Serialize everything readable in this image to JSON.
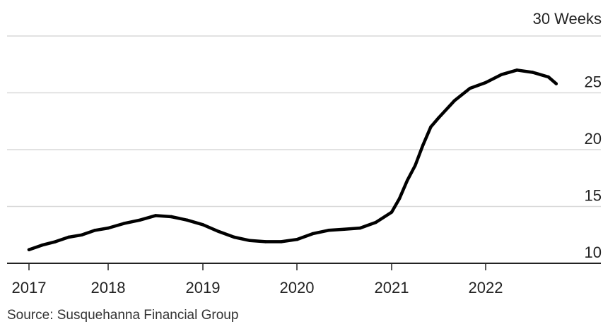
{
  "chart_data": {
    "type": "line",
    "title": "",
    "xlabel": "",
    "ylabel": "",
    "y_unit_label": "30 Weeks",
    "x_tick_labels": [
      "2017",
      "2018",
      "2019",
      "2020",
      "2021",
      "2022"
    ],
    "y_ticks": [
      10,
      15,
      20,
      25
    ],
    "xlim": [
      "2017-01",
      "2022-12"
    ],
    "ylim": [
      10,
      30
    ],
    "grid": "horizontal",
    "legend": "none",
    "series": [
      {
        "color": "#000000",
        "x": [
          "2017-01",
          "2017-03",
          "2017-05",
          "2017-07",
          "2017-09",
          "2017-11",
          "2018-01",
          "2018-03",
          "2018-05",
          "2018-07",
          "2018-09",
          "2018-11",
          "2019-01",
          "2019-03",
          "2019-05",
          "2019-07",
          "2019-09",
          "2019-11",
          "2020-01",
          "2020-03",
          "2020-05",
          "2020-07",
          "2020-09",
          "2020-11",
          "2021-01",
          "2021-02",
          "2021-03",
          "2021-04",
          "2021-05",
          "2021-06",
          "2021-07",
          "2021-09",
          "2021-11",
          "2022-01",
          "2022-03",
          "2022-05",
          "2022-07",
          "2022-09",
          "2022-10"
        ],
        "values": [
          11.2,
          11.6,
          11.9,
          12.3,
          12.5,
          12.9,
          13.1,
          13.5,
          13.8,
          14.2,
          14.1,
          13.8,
          13.4,
          12.8,
          12.3,
          12.0,
          11.9,
          11.9,
          12.1,
          12.6,
          12.9,
          13.0,
          13.1,
          13.6,
          14.5,
          15.7,
          17.3,
          18.6,
          20.4,
          22.0,
          22.8,
          24.3,
          25.4,
          25.9,
          26.6,
          27.0,
          26.8,
          26.4,
          25.8
        ]
      }
    ],
    "source": "Source: Susquehanna Financial Group"
  },
  "colors": {
    "line": "#000000",
    "grid": "#d9d9d9",
    "axis": "#222222",
    "text": "#222222",
    "background": "#ffffff"
  }
}
